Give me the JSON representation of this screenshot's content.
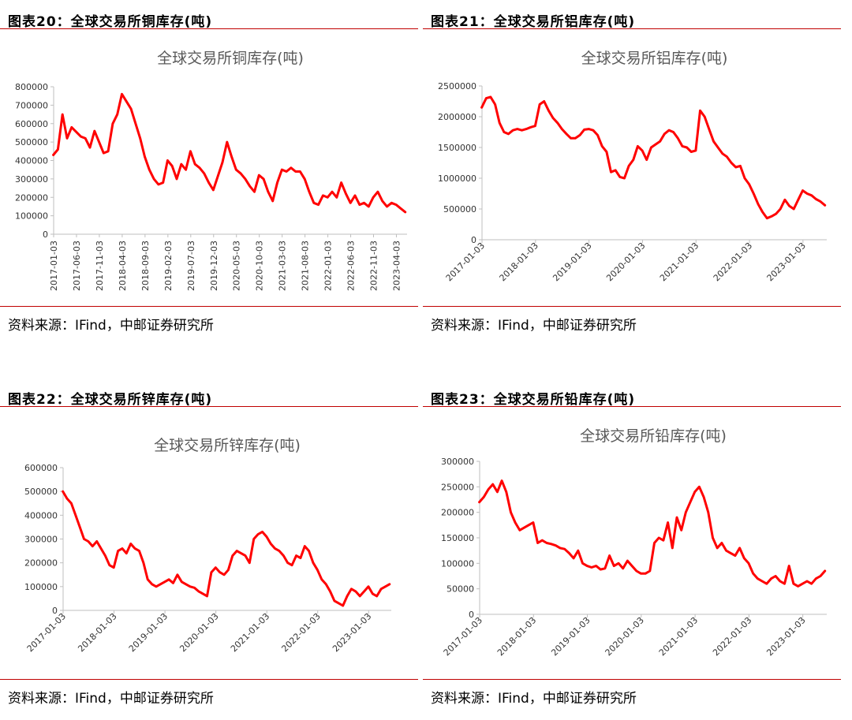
{
  "colors": {
    "series": "#ff0000",
    "rule": "#c00000",
    "axis": "#bfbfbf",
    "title": "#595959"
  },
  "panels": [
    {
      "heading": "图表20：全球交易所铜库存(吨)",
      "source": "资料来源：IFind，中邮证券研究所"
    },
    {
      "heading": "图表21：全球交易所铝库存(吨)",
      "source": "资料来源：IFind，中邮证券研究所"
    },
    {
      "heading": "图表22：全球交易所锌库存(吨)",
      "source": "资料来源：IFind，中邮证券研究所"
    },
    {
      "heading": "图表23：全球交易所铅库存(吨)",
      "source": "资料来源：IFind，中邮证券研究所"
    }
  ],
  "chart_data": [
    {
      "type": "line",
      "title": "全球交易所铜库存(吨)",
      "xlabel": "",
      "ylabel": "",
      "ylim": [
        0,
        800000
      ],
      "yticks": [
        "800000",
        "700000",
        "600000",
        "500000",
        "400000",
        "300000",
        "200000",
        "100000",
        "0"
      ],
      "xticks": [
        "2017-01-03",
        "2017-06-03",
        "2017-11-03",
        "2018-04-03",
        "2018-09-03",
        "2019-02-03",
        "2019-07-03",
        "2019-12-03",
        "2020-05-03",
        "2020-10-03",
        "2021-03-03",
        "2021-08-03",
        "2022-01-03",
        "2022-06-03",
        "2022-11-03",
        "2023-04-03"
      ],
      "x": [
        "2017-01",
        "2017-02",
        "2017-03",
        "2017-04",
        "2017-05",
        "2017-07",
        "2017-08",
        "2017-09",
        "2017-10",
        "2017-11",
        "2017-12",
        "2018-01",
        "2018-02",
        "2018-03",
        "2018-04",
        "2018-05",
        "2018-06",
        "2018-07",
        "2018-08",
        "2018-09",
        "2018-10",
        "2018-11",
        "2018-12",
        "2019-01",
        "2019-02",
        "2019-03",
        "2019-04",
        "2019-05",
        "2019-06",
        "2019-07",
        "2019-08",
        "2019-09",
        "2019-10",
        "2019-11",
        "2019-12",
        "2020-02",
        "2020-03",
        "2020-04",
        "2020-05",
        "2020-06",
        "2020-07",
        "2020-08",
        "2020-09",
        "2020-10",
        "2020-11",
        "2020-12",
        "2021-01",
        "2021-02",
        "2021-03",
        "2021-04",
        "2021-05",
        "2021-06",
        "2021-07",
        "2021-08",
        "2021-09",
        "2021-10",
        "2021-11",
        "2021-12",
        "2022-01",
        "2022-02",
        "2022-03",
        "2022-04",
        "2022-05",
        "2022-06",
        "2022-07",
        "2022-08",
        "2022-09",
        "2022-10",
        "2022-11",
        "2022-12",
        "2023-01",
        "2023-02",
        "2023-03",
        "2023-04",
        "2023-05",
        "2023-06"
      ],
      "series": [
        {
          "values": [
            430000,
            460000,
            650000,
            520000,
            580000,
            530000,
            520000,
            470000,
            560000,
            500000,
            440000,
            450000,
            600000,
            650000,
            760000,
            720000,
            680000,
            600000,
            520000,
            420000,
            350000,
            300000,
            270000,
            280000,
            400000,
            370000,
            300000,
            380000,
            350000,
            450000,
            380000,
            360000,
            330000,
            280000,
            240000,
            390000,
            500000,
            420000,
            350000,
            330000,
            300000,
            260000,
            230000,
            320000,
            300000,
            230000,
            180000,
            280000,
            350000,
            340000,
            360000,
            340000,
            340000,
            300000,
            230000,
            170000,
            160000,
            210000,
            200000,
            230000,
            200000,
            280000,
            220000,
            170000,
            210000,
            160000,
            170000,
            150000,
            200000,
            230000,
            180000,
            150000,
            170000,
            160000,
            140000,
            120000
          ]
        }
      ]
    },
    {
      "type": "line",
      "title": "全球交易所铝库存(吨)",
      "xlabel": "",
      "ylabel": "",
      "ylim": [
        0,
        2500000
      ],
      "yticks": [
        "2500000",
        "2000000",
        "1500000",
        "1000000",
        "500000",
        "0"
      ],
      "xticks": [
        "2017-01-03",
        "2018-01-03",
        "2019-01-03",
        "2020-01-03",
        "2021-01-03",
        "2022-01-03",
        "2023-01-03"
      ],
      "x": [
        "2017-01",
        "2017-02",
        "2017-03",
        "2017-04",
        "2017-05",
        "2017-06",
        "2017-07",
        "2017-08",
        "2017-09",
        "2017-10",
        "2017-11",
        "2017-12",
        "2018-01",
        "2018-02",
        "2018-03",
        "2018-04",
        "2018-05",
        "2018-06",
        "2018-07",
        "2018-08",
        "2018-09",
        "2018-10",
        "2018-11",
        "2018-12",
        "2019-01",
        "2019-02",
        "2019-03",
        "2019-04",
        "2019-05",
        "2019-06",
        "2019-07",
        "2019-08",
        "2019-09",
        "2019-10",
        "2019-11",
        "2019-12",
        "2020-01",
        "2020-02",
        "2020-03",
        "2020-04",
        "2020-05",
        "2020-06",
        "2020-07",
        "2020-08",
        "2020-09",
        "2020-10",
        "2020-11",
        "2020-12",
        "2021-01",
        "2021-02",
        "2021-03",
        "2021-04",
        "2021-05",
        "2021-06",
        "2021-07",
        "2021-08",
        "2021-09",
        "2021-10",
        "2021-11",
        "2021-12",
        "2022-01",
        "2022-02",
        "2022-03",
        "2022-04",
        "2022-05",
        "2022-06",
        "2022-07",
        "2022-08",
        "2022-09",
        "2022-10",
        "2022-11",
        "2022-12",
        "2023-01",
        "2023-02",
        "2023-03",
        "2023-04",
        "2023-05",
        "2023-06"
      ],
      "series": [
        {
          "values": [
            2150000,
            2300000,
            2320000,
            2200000,
            1900000,
            1750000,
            1720000,
            1780000,
            1800000,
            1780000,
            1800000,
            1830000,
            1850000,
            2200000,
            2250000,
            2100000,
            1980000,
            1900000,
            1800000,
            1720000,
            1650000,
            1650000,
            1700000,
            1790000,
            1800000,
            1780000,
            1700000,
            1520000,
            1430000,
            1100000,
            1130000,
            1020000,
            1000000,
            1200000,
            1300000,
            1520000,
            1450000,
            1300000,
            1500000,
            1550000,
            1600000,
            1720000,
            1780000,
            1750000,
            1650000,
            1520000,
            1500000,
            1430000,
            1450000,
            2100000,
            2000000,
            1800000,
            1600000,
            1500000,
            1400000,
            1350000,
            1250000,
            1180000,
            1200000,
            1000000,
            900000,
            750000,
            580000,
            450000,
            350000,
            380000,
            420000,
            500000,
            650000,
            550000,
            500000,
            650000,
            800000,
            750000,
            720000,
            660000,
            620000,
            560000
          ]
        }
      ]
    },
    {
      "type": "line",
      "title": "全球交易所锌库存(吨)",
      "xlabel": "",
      "ylabel": "",
      "ylim": [
        0,
        600000
      ],
      "yticks": [
        "600000",
        "500000",
        "400000",
        "300000",
        "200000",
        "100000",
        "0"
      ],
      "xticks": [
        "2017-01-03",
        "2018-01-03",
        "2019-01-03",
        "2020-01-03",
        "2021-01-03",
        "2022-01-03",
        "2023-01-03"
      ],
      "x": [
        "2017-01",
        "2017-02",
        "2017-03",
        "2017-04",
        "2017-05",
        "2017-06",
        "2017-07",
        "2017-08",
        "2017-09",
        "2017-10",
        "2017-11",
        "2017-12",
        "2018-01",
        "2018-02",
        "2018-03",
        "2018-04",
        "2018-05",
        "2018-06",
        "2018-07",
        "2018-08",
        "2018-09",
        "2018-10",
        "2018-11",
        "2018-12",
        "2019-01",
        "2019-02",
        "2019-03",
        "2019-04",
        "2019-05",
        "2019-06",
        "2019-07",
        "2019-08",
        "2019-09",
        "2019-10",
        "2019-11",
        "2019-12",
        "2020-01",
        "2020-02",
        "2020-03",
        "2020-04",
        "2020-05",
        "2020-06",
        "2020-07",
        "2020-08",
        "2020-09",
        "2020-10",
        "2020-11",
        "2020-12",
        "2021-01",
        "2021-02",
        "2021-03",
        "2021-04",
        "2021-05",
        "2021-06",
        "2021-07",
        "2021-08",
        "2021-09",
        "2021-10",
        "2021-11",
        "2021-12",
        "2022-01",
        "2022-02",
        "2022-03",
        "2022-04",
        "2022-05",
        "2022-06",
        "2022-07",
        "2022-08",
        "2022-09",
        "2022-10",
        "2022-11",
        "2022-12",
        "2023-01",
        "2023-02",
        "2023-03",
        "2023-04",
        "2023-05",
        "2023-06"
      ],
      "series": [
        {
          "values": [
            500000,
            470000,
            450000,
            400000,
            350000,
            300000,
            290000,
            270000,
            290000,
            260000,
            230000,
            190000,
            180000,
            250000,
            260000,
            240000,
            280000,
            260000,
            250000,
            200000,
            130000,
            110000,
            100000,
            110000,
            120000,
            130000,
            115000,
            150000,
            120000,
            110000,
            100000,
            95000,
            80000,
            70000,
            60000,
            160000,
            180000,
            160000,
            150000,
            170000,
            230000,
            250000,
            240000,
            230000,
            200000,
            300000,
            320000,
            330000,
            310000,
            280000,
            260000,
            250000,
            230000,
            200000,
            190000,
            230000,
            220000,
            270000,
            250000,
            200000,
            170000,
            130000,
            110000,
            80000,
            40000,
            30000,
            20000,
            60000,
            90000,
            80000,
            60000,
            80000,
            100000,
            70000,
            60000,
            90000,
            100000,
            110000
          ]
        }
      ]
    },
    {
      "type": "line",
      "title": "全球交易所铅库存(吨)",
      "xlabel": "",
      "ylabel": "",
      "ylim": [
        0,
        300000
      ],
      "yticks": [
        "300000",
        "250000",
        "200000",
        "150000",
        "100000",
        "50000",
        "0"
      ],
      "xticks": [
        "2017-01-03",
        "2018-01-03",
        "2019-01-03",
        "2020-01-03",
        "2021-01-03",
        "2022-01-03",
        "2023-01-03"
      ],
      "x": [
        "2017-01",
        "2017-02",
        "2017-03",
        "2017-04",
        "2017-05",
        "2017-06",
        "2017-07",
        "2017-08",
        "2017-09",
        "2017-10",
        "2017-11",
        "2017-12",
        "2018-01",
        "2018-02",
        "2018-03",
        "2018-04",
        "2018-05",
        "2018-06",
        "2018-07",
        "2018-08",
        "2018-09",
        "2018-10",
        "2018-11",
        "2018-12",
        "2019-01",
        "2019-02",
        "2019-03",
        "2019-04",
        "2019-05",
        "2019-06",
        "2019-07",
        "2019-08",
        "2019-09",
        "2019-10",
        "2019-11",
        "2019-12",
        "2020-01",
        "2020-02",
        "2020-03",
        "2020-04",
        "2020-05",
        "2020-06",
        "2020-07",
        "2020-08",
        "2020-09",
        "2020-10",
        "2020-11",
        "2020-12",
        "2021-01",
        "2021-02",
        "2021-03",
        "2021-04",
        "2021-05",
        "2021-06",
        "2021-07",
        "2021-08",
        "2021-09",
        "2021-10",
        "2021-11",
        "2021-12",
        "2022-01",
        "2022-02",
        "2022-03",
        "2022-04",
        "2022-05",
        "2022-06",
        "2022-07",
        "2022-08",
        "2022-09",
        "2022-10",
        "2022-11",
        "2022-12",
        "2023-01",
        "2023-02",
        "2023-03",
        "2023-04",
        "2023-05",
        "2023-06"
      ],
      "series": [
        {
          "values": [
            220000,
            230000,
            245000,
            255000,
            240000,
            262000,
            240000,
            200000,
            180000,
            165000,
            170000,
            175000,
            180000,
            140000,
            145000,
            140000,
            138000,
            135000,
            130000,
            128000,
            120000,
            110000,
            125000,
            100000,
            95000,
            92000,
            95000,
            88000,
            90000,
            115000,
            95000,
            100000,
            90000,
            105000,
            95000,
            85000,
            80000,
            80000,
            85000,
            140000,
            150000,
            145000,
            180000,
            130000,
            190000,
            165000,
            200000,
            220000,
            240000,
            250000,
            230000,
            200000,
            150000,
            130000,
            140000,
            125000,
            120000,
            115000,
            130000,
            110000,
            100000,
            80000,
            70000,
            65000,
            60000,
            70000,
            75000,
            65000,
            60000,
            95000,
            60000,
            55000,
            60000,
            65000,
            60000,
            70000,
            75000,
            85000
          ]
        }
      ]
    }
  ]
}
